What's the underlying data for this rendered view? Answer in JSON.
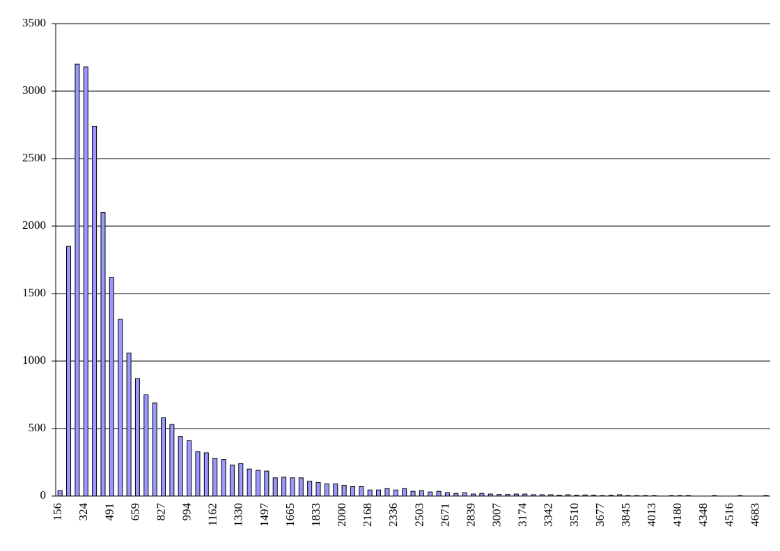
{
  "chart_data": {
    "type": "bar",
    "categories": [
      "156",
      null,
      null,
      "324",
      null,
      null,
      "491",
      null,
      null,
      "659",
      null,
      null,
      "827",
      null,
      null,
      "994",
      null,
      null,
      "1162",
      null,
      null,
      "1330",
      null,
      null,
      "1497",
      null,
      null,
      "1665",
      null,
      null,
      "1833",
      null,
      null,
      "2000",
      null,
      null,
      "2168",
      null,
      null,
      "2336",
      null,
      null,
      "2503",
      null,
      null,
      "2671",
      null,
      null,
      "2839",
      null,
      null,
      "3007",
      null,
      null,
      "3174",
      null,
      null,
      "3342",
      null,
      null,
      "3510",
      null,
      null,
      "3677",
      null,
      null,
      "3845",
      null,
      null,
      "4013",
      null,
      null,
      "4180",
      null,
      null,
      "4348",
      null,
      null,
      "4516",
      null,
      null,
      "4683",
      null
    ],
    "values": [
      40,
      1850,
      3200,
      3180,
      2740,
      2100,
      1620,
      1310,
      1060,
      870,
      750,
      690,
      580,
      530,
      440,
      410,
      330,
      320,
      280,
      270,
      230,
      240,
      200,
      190,
      185,
      135,
      140,
      135,
      135,
      110,
      100,
      90,
      90,
      80,
      70,
      70,
      45,
      45,
      55,
      45,
      55,
      35,
      40,
      30,
      35,
      25,
      20,
      25,
      15,
      20,
      15,
      12,
      12,
      15,
      15,
      10,
      10,
      10,
      5,
      10,
      5,
      8,
      5,
      3,
      5,
      10,
      3,
      3,
      3,
      3,
      0,
      3,
      3,
      3,
      0,
      0,
      3,
      0,
      0,
      3,
      0,
      0,
      3
    ],
    "color": "#9999ff",
    "ylim": [
      0,
      3500
    ],
    "yticks": [
      0,
      500,
      1000,
      1500,
      2000,
      2500,
      3000,
      3500
    ],
    "grid": true
  }
}
